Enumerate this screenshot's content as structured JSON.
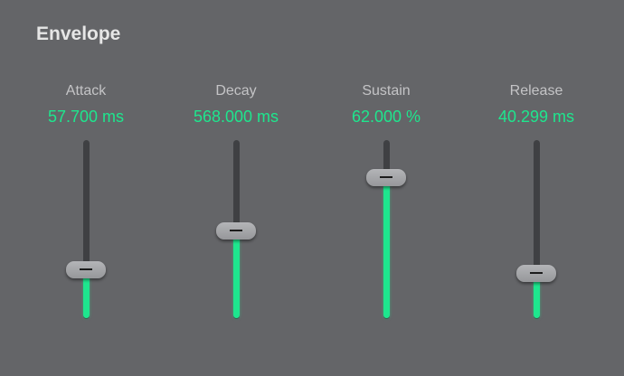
{
  "title": "Envelope",
  "colors": {
    "background": "#646568",
    "accent": "#1ee68e",
    "track": "#3f4043"
  },
  "sliders": [
    {
      "label": "Attack",
      "value": "57.700 ms",
      "level": 0.27
    },
    {
      "label": "Decay",
      "value": "568.000 ms",
      "level": 0.49
    },
    {
      "label": "Sustain",
      "value": "62.000 %",
      "level": 0.79
    },
    {
      "label": "Release",
      "value": "40.299 ms",
      "level": 0.25
    }
  ]
}
